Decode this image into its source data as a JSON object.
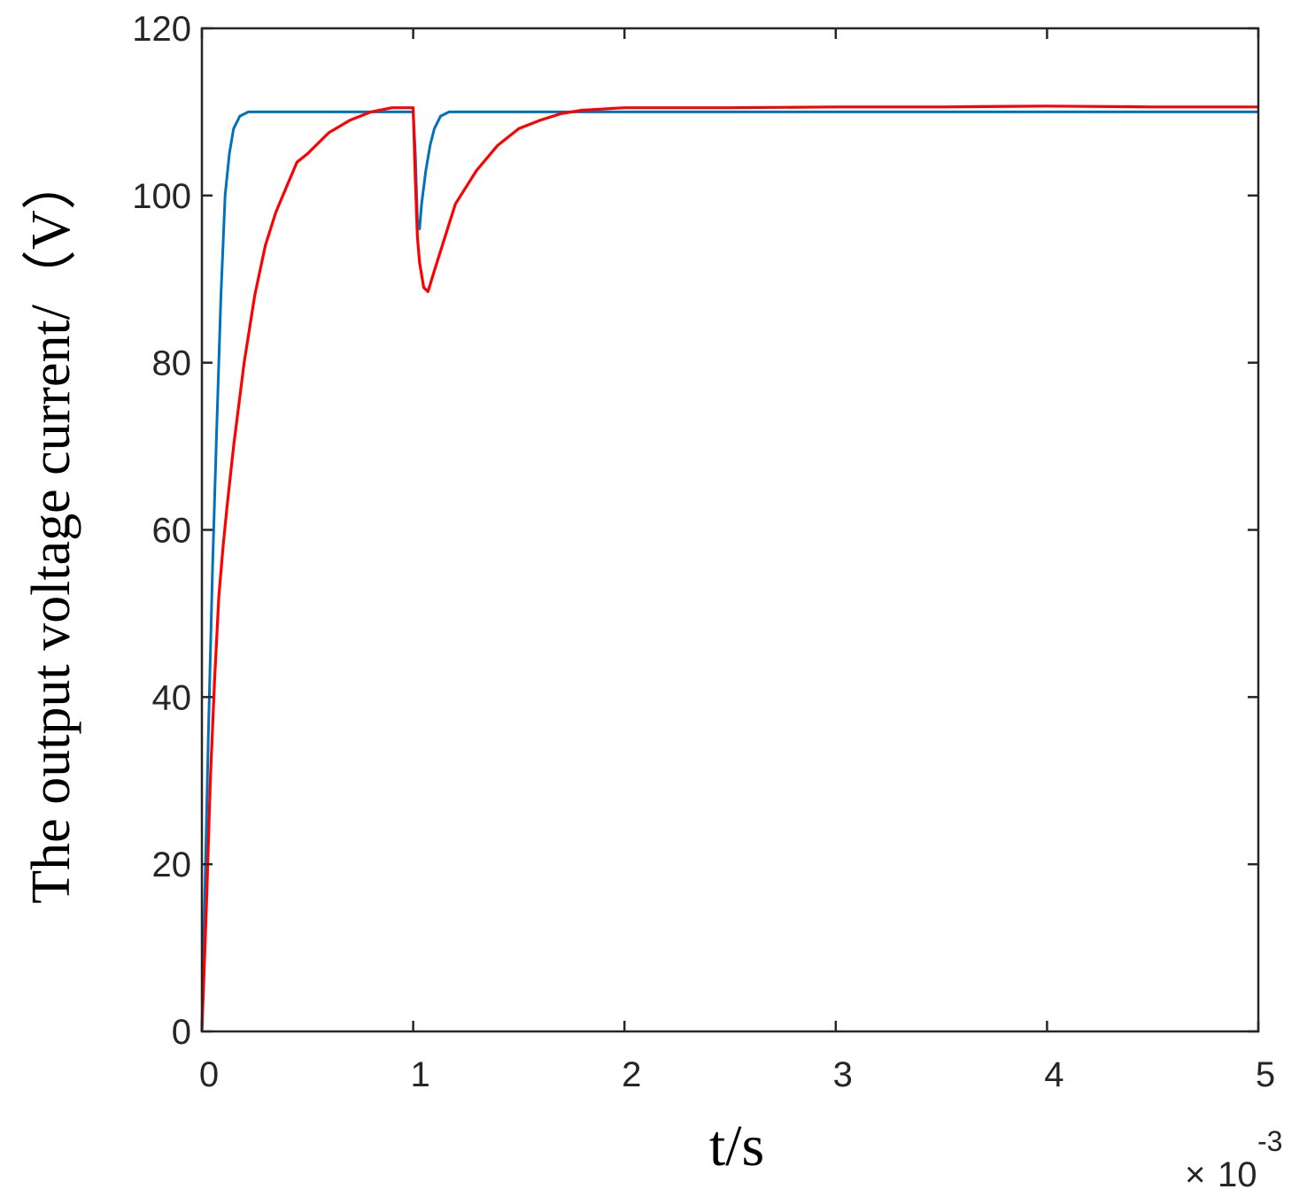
{
  "chart_data": {
    "type": "line",
    "xlabel": "t/s",
    "ylabel": "The output voltage current/（V）",
    "x_exponent_label": {
      "times": "×",
      "base": "10",
      "power": "-3"
    },
    "xlim": [
      0,
      5
    ],
    "ylim": [
      0,
      120
    ],
    "x_ticks": [
      "0",
      "1",
      "2",
      "3",
      "4",
      "5"
    ],
    "y_ticks": [
      "0",
      "20",
      "40",
      "60",
      "80",
      "100",
      "120"
    ],
    "grid": false,
    "legend": "none",
    "series": [
      {
        "color": "#0072bd",
        "x": [
          0,
          0.01,
          0.03,
          0.05,
          0.07,
          0.09,
          0.11,
          0.13,
          0.15,
          0.18,
          0.22,
          0.3,
          0.5,
          1.0,
          1.01,
          1.02,
          1.03,
          1.04,
          1.06,
          1.08,
          1.1,
          1.13,
          1.17,
          1.25,
          1.5,
          2.0,
          3.0,
          4.0,
          5.0
        ],
        "y": [
          0,
          12,
          35,
          55,
          72,
          88,
          100,
          105,
          108,
          109.5,
          110,
          110,
          110,
          110,
          105,
          97,
          96,
          99,
          103,
          106,
          108,
          109.5,
          110,
          110,
          110,
          110,
          110,
          110,
          110
        ]
      },
      {
        "color": "#ff0000",
        "x": [
          0,
          0.02,
          0.04,
          0.06,
          0.08,
          0.1,
          0.12,
          0.15,
          0.2,
          0.25,
          0.3,
          0.35,
          0.4,
          0.45,
          0.5,
          0.6,
          0.7,
          0.8,
          0.9,
          1.0,
          1.01,
          1.02,
          1.03,
          1.05,
          1.07,
          1.1,
          1.15,
          1.2,
          1.3,
          1.4,
          1.5,
          1.6,
          1.7,
          1.8,
          2.0,
          2.5,
          3.0,
          3.5,
          4.0,
          4.5,
          5.0
        ],
        "y": [
          0,
          14,
          30,
          42,
          52,
          58,
          63,
          70,
          80,
          88,
          94,
          98,
          101,
          104,
          105,
          107.5,
          109,
          110,
          110.5,
          110.5,
          102,
          95,
          92,
          89,
          88.5,
          91,
          95,
          99,
          103,
          106,
          108,
          109,
          109.8,
          110.2,
          110.5,
          110.5,
          110.6,
          110.6,
          110.7,
          110.6,
          110.6
        ]
      }
    ]
  }
}
